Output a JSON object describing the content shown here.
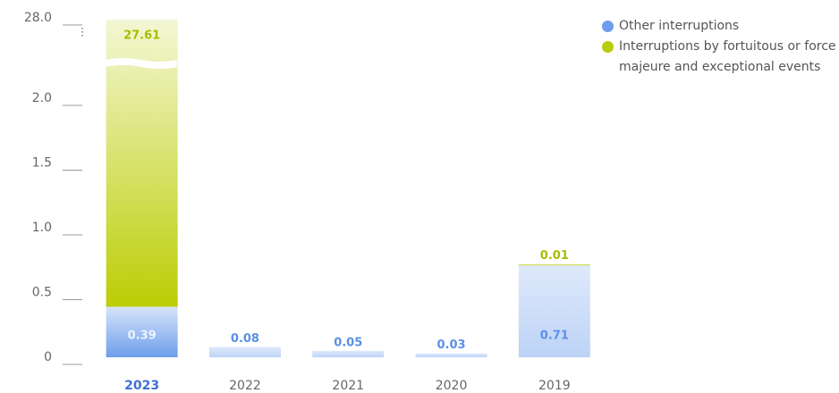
{
  "chart_data": {
    "type": "stacked_bar",
    "categories": [
      "2023",
      "2022",
      "2021",
      "2020",
      "2019"
    ],
    "highlight_category": "2023",
    "series": [
      {
        "name": "Other interruptions",
        "color": "#6d9eeb",
        "values": [
          0.39,
          0.08,
          0.05,
          0.03,
          0.71
        ]
      },
      {
        "name": "Interruptions by fortuitous or force majeure and exceptional events",
        "color": "#b8cc0a",
        "values": [
          27.61,
          null,
          null,
          null,
          0.01
        ]
      }
    ],
    "ylim": [
      0,
      28
    ],
    "yticks": [
      0,
      0.5,
      {
        "value": 1,
        "label": "1.0"
      },
      1.5,
      {
        "value": 2,
        "label": "2.0"
      },
      {
        "value": 28,
        "label": "28.0"
      }
    ],
    "broken_axis": true,
    "legend": "top-right"
  }
}
